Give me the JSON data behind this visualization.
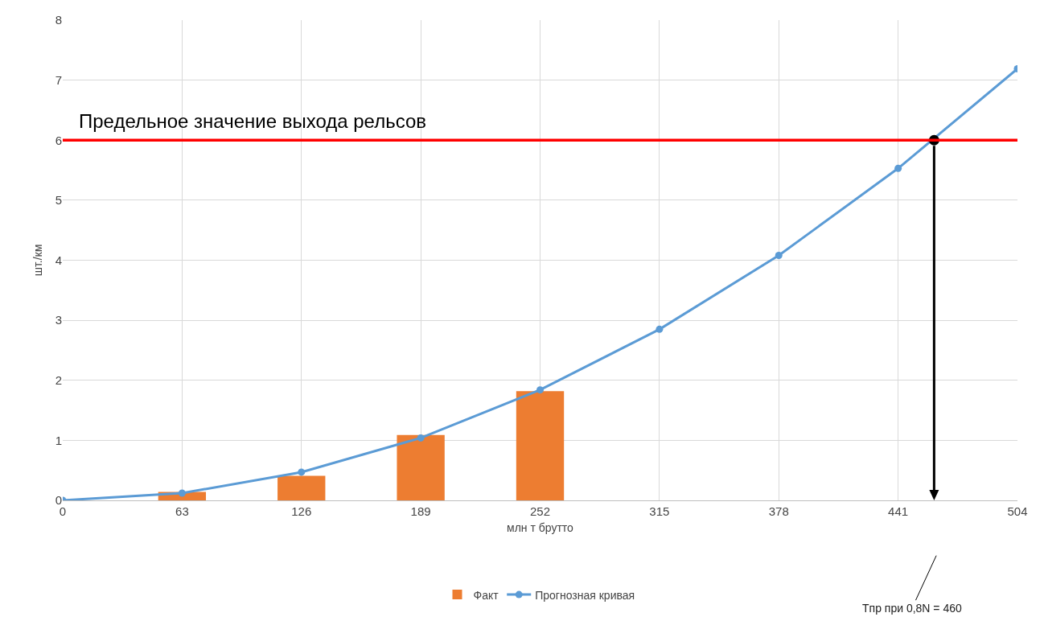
{
  "chart_data": {
    "type": "bar",
    "xlabel": "млн т брутто",
    "ylabel": "шт./км",
    "xlim": [
      0,
      504
    ],
    "xticks": [
      0,
      63,
      126,
      189,
      252,
      315,
      378,
      441,
      504
    ],
    "ylim": [
      0,
      8
    ],
    "yticks": [
      0,
      1,
      2,
      3,
      4,
      5,
      6,
      7,
      8
    ],
    "grid": true,
    "legend": "bottom",
    "marker": "circle",
    "line_style": "solid",
    "series": [
      {
        "name": "Факт",
        "color": "#ed7d31",
        "x": [
          63,
          126,
          189,
          252
        ],
        "values": [
          0.14,
          0.41,
          1.09,
          1.82
        ]
      },
      {
        "name": "Прогнозная кривая",
        "type": "line",
        "color": "#5b9bd5",
        "x": [
          0,
          63,
          126,
          189,
          252,
          315,
          378,
          441,
          504
        ],
        "values": [
          0,
          0.12,
          0.47,
          1.04,
          1.84,
          2.85,
          4.08,
          5.53,
          7.19
        ]
      },
      {
        "type": "scatter",
        "color": "#000000",
        "x": [
          460
        ],
        "values": [
          6
        ]
      }
    ],
    "ref_lines": [
      {
        "axis": "y",
        "value": 6,
        "label": "Предельное значение выхода рельсов",
        "color": "#ff0000",
        "line_style": "solid"
      }
    ],
    "annotations": [
      "Tпр при 0,8N = 460"
    ]
  }
}
